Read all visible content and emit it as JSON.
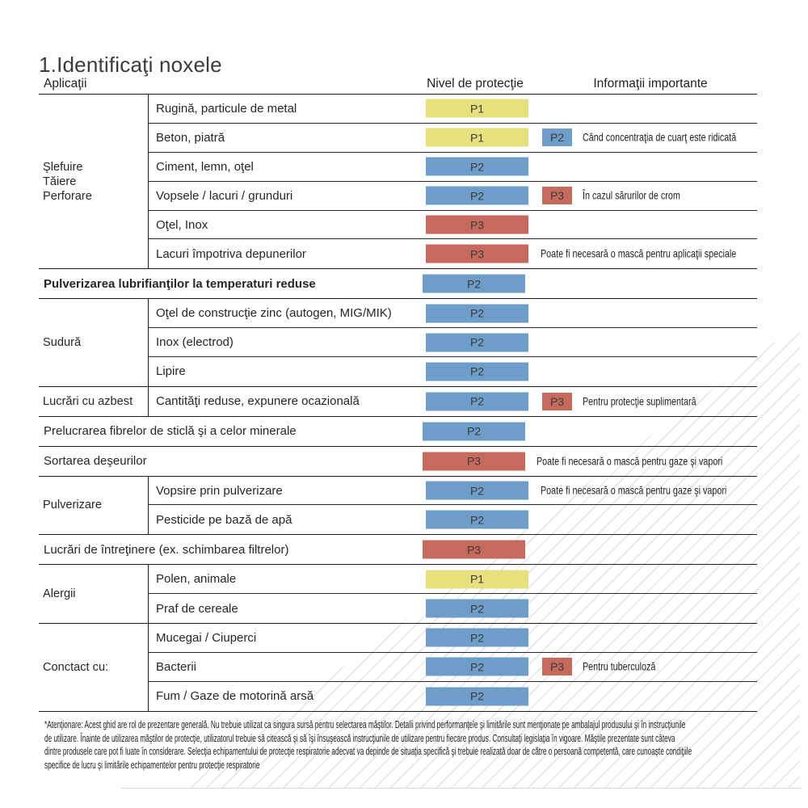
{
  "page": {
    "title": "1.Identificaţi noxele"
  },
  "table": {
    "headers": {
      "applications": "Aplicaţii",
      "protection": "Nivel de protecţie",
      "info": "Informaţii importante"
    },
    "level_colors": {
      "P1": "#e6e17d",
      "P2": "#6f9dc9",
      "P3": "#c76a5e"
    },
    "sections": [
      {
        "category": "Şlefuire\nTăiere\nPerforare",
        "rows": [
          {
            "label": "Rugină, particule de metal",
            "level": "P1"
          },
          {
            "label": "Beton, piatră",
            "level": "P1",
            "extra_level": "P2",
            "note": "Când concentraţia de cuarţ este ridicată"
          },
          {
            "label": "Ciment, lemn, oţel",
            "level": "P2"
          },
          {
            "label": "Vopsele / lacuri / grunduri",
            "level": "P2",
            "extra_level": "P3",
            "note": "În cazul sărurilor de crom"
          },
          {
            "label": "Oţel, Inox",
            "level": "P3"
          },
          {
            "label": "Lacuri împotriva depunerilor",
            "level": "P3",
            "note": "Poate fi necesară o mască pentru aplicaţii speciale"
          }
        ]
      },
      {
        "full": true,
        "rows": [
          {
            "label": "Pulverizarea lubrifianţilor la temperaturi reduse",
            "bold": true,
            "level": "P2"
          }
        ]
      },
      {
        "category": "Sudură",
        "rows": [
          {
            "label": "Oţel de construcţie zinc (autogen, MIG/MIK)",
            "level": "P2"
          },
          {
            "label": "Inox (electrod)",
            "level": "P2"
          },
          {
            "label": "Lipire",
            "level": "P2"
          }
        ]
      },
      {
        "category": "Lucrări cu azbest",
        "rows": [
          {
            "label": "Cantităţi reduse, expunere ocazională",
            "level": "P2",
            "extra_level": "P3",
            "note": "Pentru protecţie suplimentară"
          }
        ]
      },
      {
        "full": true,
        "rows": [
          {
            "label": "Prelucrarea fibrelor de sticlă şi a celor minerale",
            "level": "P2"
          }
        ]
      },
      {
        "full": true,
        "rows": [
          {
            "label": "Sortarea deşeurilor",
            "level": "P3",
            "note": "Poate fi necesară o mască pentru gaze şi vapori"
          }
        ]
      },
      {
        "category": "Pulverizare",
        "rows": [
          {
            "label": "Vopsire prin pulverizare",
            "level": "P2",
            "note": "Poate fi necesară o mască pentru gaze şi vapori"
          },
          {
            "label": "Pesticide pe bază de apă",
            "level": "P2"
          }
        ]
      },
      {
        "full": true,
        "rows": [
          {
            "label": "Lucrări de întreţinere (ex. schimbarea filtrelor)",
            "level": "P3"
          }
        ]
      },
      {
        "category": "Alergii",
        "rows": [
          {
            "label": "Polen, animale",
            "level": "P1"
          },
          {
            "label": "Praf de cereale",
            "level": "P2"
          }
        ]
      },
      {
        "category": "Conctact cu:",
        "rows": [
          {
            "label": "Mucegai / Ciuperci",
            "level": "P2"
          },
          {
            "label": "Bacterii",
            "level": "P2",
            "extra_level": "P3",
            "note": "Pentru tuberculoză"
          },
          {
            "label": "Fum / Gaze de motorină arsă",
            "level": "P2"
          }
        ]
      }
    ]
  },
  "footer": {
    "lines": [
      "*Atenţionare: Acest ghid are rol de prezentare generală. Nu trebuie utilizat ca singura sursă pentru selectarea măştilor. Detalii privind performanţele şi limitările sunt menţionate pe ambalajul produsului şi în instrucţiunile",
      "de utilizare. Înainte de utilizarea măştilor de protecţie, utilizatorul trebuie să citească şi să îşi însuşească instrucţiunile de utilizare pentru fiecare produs. Consultaţi legislaţia în vigoare. Măştile prezentate sunt câteva",
      "dintre produsele care pot fi luate în considerare. Selecţia echipamentului de protecţie respiratorie adecvat va depinde de situaţia specifică şi trebuie realizată doar de către o persoană competentă, care cunoaşte condiţiile",
      "specifice de lucru şi limitările echipamentelor pentru protecţie respiratorie"
    ]
  }
}
